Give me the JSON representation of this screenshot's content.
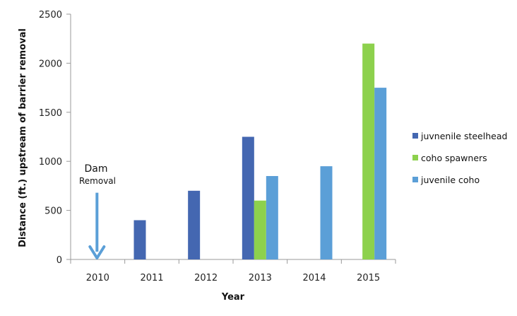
{
  "chart_data": {
    "type": "bar",
    "categories": [
      "2010",
      "2011",
      "2012",
      "2013",
      "2014",
      "2015"
    ],
    "series": [
      {
        "name": "juvnenile steelhead",
        "color": "#4467b1",
        "values": [
          null,
          400,
          700,
          1250,
          null,
          null
        ]
      },
      {
        "name": "coho spawners",
        "color": "#8dd14d",
        "values": [
          null,
          null,
          null,
          600,
          null,
          2200
        ]
      },
      {
        "name": "juvenile coho",
        "color": "#5b9fd7",
        "values": [
          null,
          null,
          null,
          850,
          950,
          1750
        ]
      }
    ],
    "xlabel": "Year",
    "ylabel": "Distance (ft.) upstream of barrier removal",
    "ylim": [
      0,
      2500
    ],
    "yticks": [
      0,
      500,
      1000,
      1500,
      2000,
      2500
    ],
    "legend_position": "right",
    "grid": false,
    "annotation": {
      "title": "Dam",
      "subtitle": "Removal",
      "category": "2010",
      "arrow": "down",
      "arrow_color": "#5b9fd7",
      "arrow_top_value": 680
    }
  }
}
